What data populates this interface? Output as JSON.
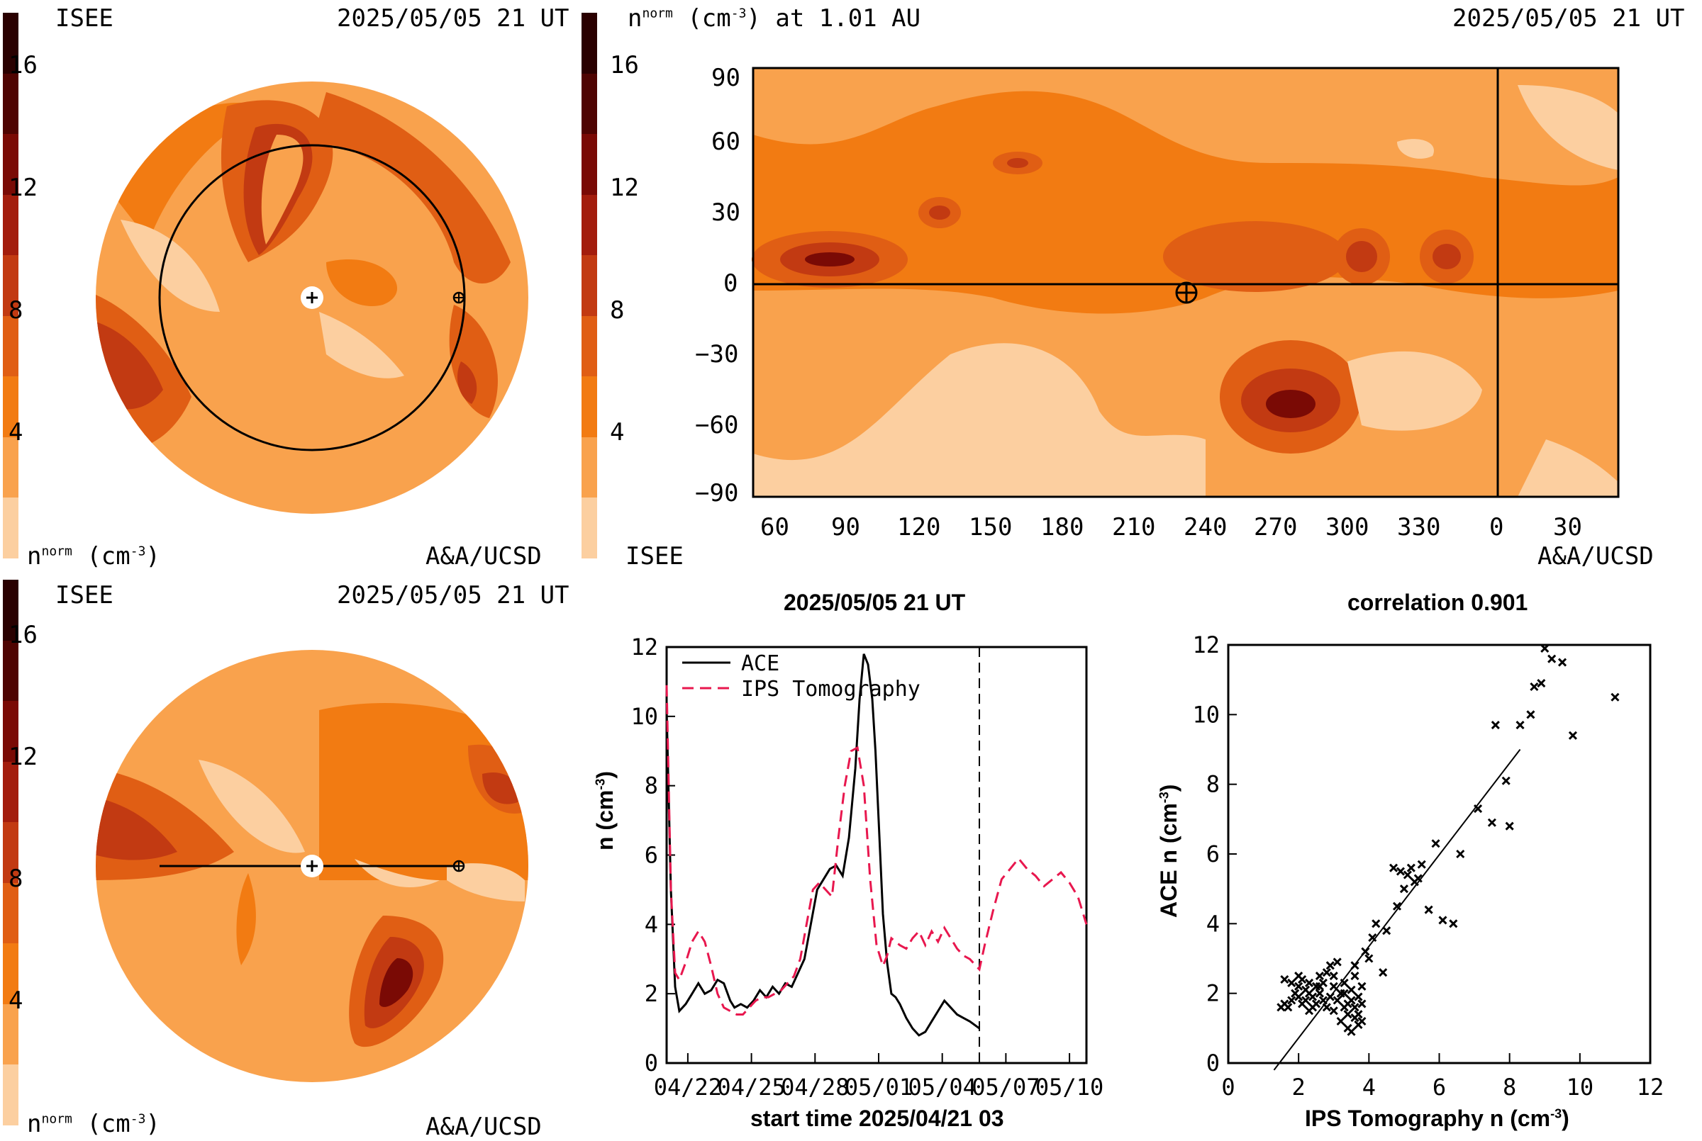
{
  "palette": [
    "#fccfa0",
    "#f9a24d",
    "#f27b12",
    "#e05e14",
    "#c23a12",
    "#a31d0d",
    "#7a0a05",
    "#4f0402",
    "#2a0000"
  ],
  "panel_a": {
    "institution": "ISEE",
    "timestamp": "2025/05/05 21 UT",
    "colorbar_ticks": [
      "16",
      "12",
      "8",
      "4"
    ],
    "unit_label": "n",
    "unit_sup": "norm",
    "unit_rest": " (cm",
    "unit_exp": "-3",
    "unit_close": ")",
    "credit": "A&A/UCSD"
  },
  "panel_b": {
    "timestamp": "2025/05/05 21 UT",
    "title_n": "n",
    "title_sup": "norm",
    "title_rest": " (cm",
    "title_exp": "-3",
    "title_close": ") at 1.01 AU",
    "colorbar_ticks": [
      "16",
      "12",
      "8",
      "4"
    ],
    "institution": "ISEE",
    "credit": "A&A/UCSD",
    "y_ticks": [
      "90",
      "60",
      "30",
      "0",
      "−30",
      "−60",
      "−90"
    ],
    "x_ticks": [
      "60",
      "90",
      "120",
      "150",
      "180",
      "210",
      "240",
      "270",
      "300",
      "330",
      "0",
      "30"
    ]
  },
  "panel_c": {
    "institution": "ISEE",
    "timestamp": "2025/05/05 21 UT",
    "colorbar_ticks": [
      "16",
      "12",
      "8",
      "4"
    ],
    "unit_label": "n",
    "unit_sup": "norm",
    "unit_rest": " (cm",
    "unit_exp": "-3",
    "unit_close": ")",
    "credit": "A&A/UCSD"
  },
  "chart_data": [
    {
      "type": "line",
      "title": "2025/05/05 21 UT",
      "xlabel": "start time 2025/04/21 03",
      "ylabel": "n (cm-3)",
      "ylabel_base": "n (cm",
      "ylabel_exp": "-3",
      "ylabel_close": ")",
      "x_tick_labels": [
        "04/22",
        "04/25",
        "04/28",
        "05/01",
        "05/04",
        "05/07",
        "05/10"
      ],
      "x_tick_days": [
        1,
        4,
        7,
        10,
        13,
        16,
        19
      ],
      "xlim_days": [
        0,
        19.8
      ],
      "ylim": [
        0,
        12
      ],
      "y_ticks": [
        "0",
        "2",
        "4",
        "6",
        "8",
        "10",
        "12"
      ],
      "marker_day": 14.75,
      "legend_placement": "top-left",
      "series": [
        {
          "name": "ACE",
          "color": "#000000",
          "dash": "solid",
          "x": [
            0.0,
            0.2,
            0.4,
            0.6,
            0.9,
            1.2,
            1.5,
            1.8,
            2.1,
            2.4,
            2.7,
            3.0,
            3.2,
            3.5,
            3.8,
            4.1,
            4.4,
            4.7,
            5.0,
            5.3,
            5.6,
            5.9,
            6.2,
            6.5,
            6.8,
            7.1,
            7.4,
            7.7,
            8.0,
            8.3,
            8.6,
            8.9,
            9.1,
            9.3,
            9.5,
            9.7,
            9.85,
            10.0,
            10.2,
            10.4,
            10.6,
            10.8,
            11.0,
            11.3,
            11.6,
            11.9,
            12.2,
            12.5,
            12.8,
            13.1,
            13.4,
            13.7,
            14.0,
            14.3,
            14.75
          ],
          "y": [
            10.2,
            5.0,
            2.2,
            1.5,
            1.7,
            2.0,
            2.3,
            2.0,
            2.1,
            2.4,
            2.3,
            1.8,
            1.6,
            1.7,
            1.6,
            1.8,
            2.1,
            1.9,
            2.2,
            2.0,
            2.3,
            2.2,
            2.6,
            3.0,
            4.0,
            5.0,
            5.3,
            5.6,
            5.7,
            5.4,
            6.5,
            8.5,
            10.5,
            11.8,
            11.5,
            10.5,
            9.0,
            7.0,
            4.3,
            2.9,
            2.0,
            1.9,
            1.7,
            1.3,
            1.0,
            0.8,
            0.9,
            1.2,
            1.5,
            1.8,
            1.6,
            1.4,
            1.3,
            1.2,
            1.0
          ]
        },
        {
          "name": "IPS Tomography",
          "color": "#e8174e",
          "dash": "dashed",
          "x": [
            0.0,
            0.2,
            0.4,
            0.6,
            0.9,
            1.2,
            1.5,
            1.8,
            2.1,
            2.4,
            2.7,
            3.0,
            3.3,
            3.6,
            3.9,
            4.2,
            4.5,
            4.8,
            5.1,
            5.4,
            5.7,
            6.0,
            6.3,
            6.6,
            6.9,
            7.2,
            7.5,
            7.8,
            8.1,
            8.4,
            8.7,
            9.0,
            9.3,
            9.6,
            9.9,
            10.2,
            10.4,
            10.6,
            10.8,
            11.0,
            11.3,
            11.6,
            11.9,
            12.2,
            12.5,
            12.8,
            13.1,
            13.4,
            13.7,
            14.0,
            14.3,
            14.75,
            15.0,
            15.4,
            15.8,
            16.2,
            16.6,
            17.0,
            17.4,
            17.8,
            18.2,
            18.6,
            19.0,
            19.4,
            19.8
          ],
          "y": [
            10.9,
            5.0,
            2.6,
            2.4,
            2.9,
            3.5,
            3.8,
            3.5,
            2.8,
            2.0,
            1.6,
            1.5,
            1.4,
            1.4,
            1.6,
            1.8,
            1.9,
            1.9,
            2.0,
            2.1,
            2.3,
            2.5,
            3.0,
            4.0,
            5.0,
            5.2,
            5.0,
            4.8,
            6.5,
            8.0,
            9.0,
            9.1,
            8.0,
            5.3,
            3.4,
            2.8,
            3.1,
            3.6,
            3.5,
            3.4,
            3.3,
            3.6,
            3.8,
            3.4,
            3.8,
            3.5,
            3.9,
            3.6,
            3.3,
            3.1,
            3.0,
            2.7,
            3.4,
            4.4,
            5.3,
            5.6,
            5.9,
            5.6,
            5.4,
            5.1,
            5.3,
            5.5,
            5.2,
            4.8,
            4.0
          ]
        }
      ]
    },
    {
      "type": "scatter",
      "title": "correlation 0.901",
      "xlabel": "IPS Tomography n (cm-3)",
      "xlabel_base": "IPS Tomography n (cm",
      "xlabel_exp": "-3",
      "xlabel_close": ")",
      "ylabel": "ACE n (cm-3)",
      "ylabel_base": "ACE n (cm",
      "ylabel_exp": "-3",
      "ylabel_close": ")",
      "xlim": [
        0,
        12
      ],
      "ylim": [
        0,
        12
      ],
      "x_ticks": [
        "0",
        "2",
        "4",
        "6",
        "8",
        "10",
        "12"
      ],
      "y_ticks": [
        "0",
        "2",
        "4",
        "6",
        "8",
        "10",
        "12"
      ],
      "fit_line": {
        "x": [
          1.3,
          8.3
        ],
        "y": [
          -0.2,
          9.0
        ]
      },
      "points": [
        [
          1.5,
          1.6
        ],
        [
          1.6,
          1.7
        ],
        [
          1.7,
          1.6
        ],
        [
          1.8,
          1.8
        ],
        [
          1.8,
          2.3
        ],
        [
          1.9,
          2.0
        ],
        [
          2.0,
          1.9
        ],
        [
          2.0,
          2.2
        ],
        [
          2.1,
          1.7
        ],
        [
          2.1,
          2.4
        ],
        [
          2.2,
          1.8
        ],
        [
          2.2,
          2.1
        ],
        [
          2.3,
          2.0
        ],
        [
          2.3,
          2.3
        ],
        [
          2.4,
          1.6
        ],
        [
          2.4,
          1.9
        ],
        [
          2.5,
          2.2
        ],
        [
          2.5,
          1.7
        ],
        [
          2.6,
          2.5
        ],
        [
          2.6,
          2.0
        ],
        [
          2.7,
          1.8
        ],
        [
          2.7,
          2.3
        ],
        [
          2.8,
          2.6
        ],
        [
          2.8,
          1.6
        ],
        [
          2.9,
          1.9
        ],
        [
          2.9,
          2.8
        ],
        [
          3.0,
          2.2
        ],
        [
          3.0,
          1.5
        ],
        [
          3.1,
          1.8
        ],
        [
          3.1,
          2.9
        ],
        [
          3.2,
          1.2
        ],
        [
          3.2,
          2.0
        ],
        [
          3.3,
          1.6
        ],
        [
          3.3,
          2.3
        ],
        [
          3.4,
          1.0
        ],
        [
          3.4,
          1.4
        ],
        [
          3.5,
          1.8
        ],
        [
          3.5,
          2.1
        ],
        [
          3.5,
          0.9
        ],
        [
          3.6,
          1.3
        ],
        [
          3.6,
          1.6
        ],
        [
          3.6,
          2.5
        ],
        [
          3.7,
          1.1
        ],
        [
          3.7,
          1.9
        ],
        [
          3.7,
          1.4
        ],
        [
          3.8,
          1.2
        ],
        [
          3.8,
          1.7
        ],
        [
          3.8,
          2.2
        ],
        [
          3.9,
          3.2
        ],
        [
          4.0,
          3.0
        ],
        [
          4.1,
          3.6
        ],
        [
          4.2,
          4.0
        ],
        [
          4.4,
          2.6
        ],
        [
          4.5,
          3.8
        ],
        [
          4.7,
          5.6
        ],
        [
          4.8,
          4.5
        ],
        [
          4.9,
          5.5
        ],
        [
          5.0,
          5.0
        ],
        [
          5.1,
          5.4
        ],
        [
          5.2,
          5.6
        ],
        [
          5.3,
          5.2
        ],
        [
          5.4,
          5.3
        ],
        [
          5.5,
          5.7
        ],
        [
          5.7,
          4.4
        ],
        [
          5.9,
          6.3
        ],
        [
          6.1,
          4.1
        ],
        [
          6.4,
          4.0
        ],
        [
          6.6,
          6.0
        ],
        [
          7.1,
          7.3
        ],
        [
          7.5,
          6.9
        ],
        [
          7.6,
          9.7
        ],
        [
          7.9,
          8.1
        ],
        [
          8.0,
          6.8
        ],
        [
          8.3,
          9.7
        ],
        [
          8.6,
          10.0
        ],
        [
          8.7,
          10.8
        ],
        [
          8.9,
          10.9
        ],
        [
          9.0,
          11.9
        ],
        [
          9.2,
          11.6
        ],
        [
          9.5,
          11.5
        ],
        [
          9.8,
          9.4
        ],
        [
          11.0,
          10.5
        ],
        [
          1.6,
          2.4
        ],
        [
          2.0,
          2.5
        ],
        [
          2.3,
          1.5
        ],
        [
          2.6,
          2.2
        ],
        [
          3.0,
          2.5
        ],
        [
          3.3,
          2.0
        ],
        [
          3.6,
          2.8
        ],
        [
          3.4,
          1.7
        ]
      ]
    }
  ]
}
